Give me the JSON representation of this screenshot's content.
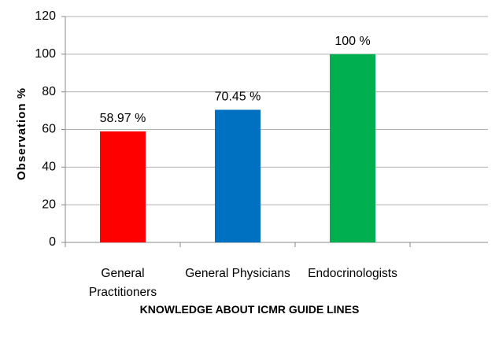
{
  "chart_data": {
    "type": "bar",
    "x_label": "KNOWLEDGE ABOUT ICMR GUIDE LINES",
    "y_label": "Observation  %",
    "categories": [
      "General Practitioners",
      "General Physicians",
      "Endocrinologists"
    ],
    "values": [
      58.97,
      70.45,
      100
    ],
    "value_labels": [
      "58.97 %",
      "70.45 %",
      "100 %"
    ],
    "colors": [
      "#ff0000",
      "#0070c0",
      "#00b050"
    ],
    "ylim": [
      0,
      120
    ],
    "yticks": [
      0,
      20,
      40,
      60,
      80,
      100,
      120
    ],
    "grid": true
  }
}
